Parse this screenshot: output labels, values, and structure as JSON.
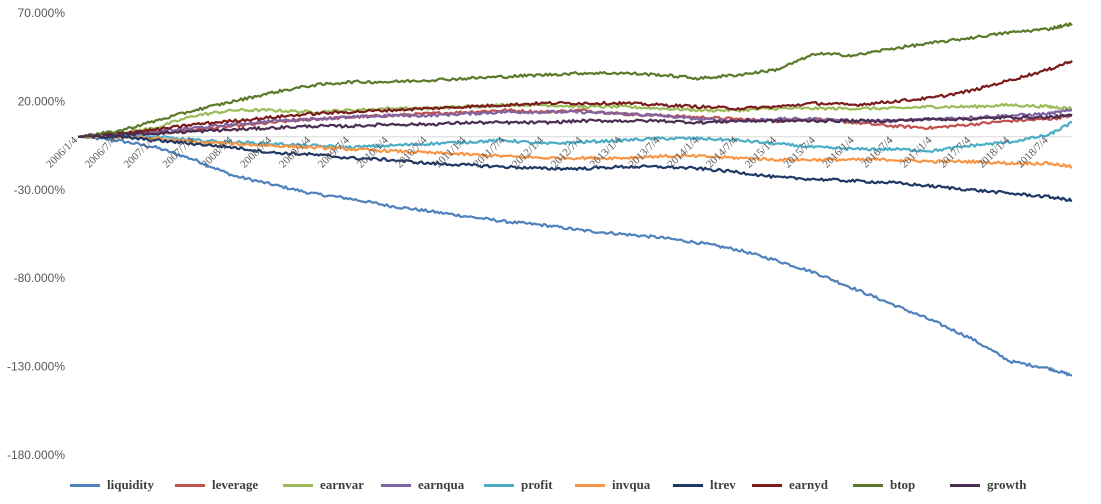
{
  "chart_data": {
    "type": "line",
    "title": "",
    "xlabel": "",
    "ylabel": "",
    "ylim": [
      -180,
      70
    ],
    "y_ticks": [
      "70.000%",
      "20.000%",
      "-30.000%",
      "-80.000%",
      "-130.000%",
      "-180.000%"
    ],
    "y_tick_values": [
      70,
      20,
      -30,
      -80,
      -130,
      -180
    ],
    "x_ticks": [
      "2006/1/4",
      "2006/7/4",
      "2007/1/4",
      "2007/7/4",
      "2008/1/4",
      "2008/7/4",
      "2009/1/4",
      "2009/7/4",
      "2010/1/4",
      "2010/7/4",
      "2011/1/4",
      "2011/7/4",
      "2012/1/4",
      "2012/7/4",
      "2013/1/4",
      "2013/7/4",
      "2014/1/4",
      "2014/7/4",
      "2015/1/4",
      "2015/7/4",
      "2016/1/4",
      "2016/7/4",
      "2017/1/4",
      "2017/7/4",
      "2018/1/4",
      "2018/7/4"
    ],
    "x_range": [
      0,
      12.8
    ],
    "legend_position": "bottom",
    "series": [
      {
        "name": "liquidity",
        "color": "#4f81bd",
        "x": [
          0,
          0.5,
          1,
          1.5,
          2,
          2.5,
          3,
          3.5,
          4,
          4.5,
          5,
          5.5,
          6,
          6.5,
          7,
          7.5,
          8,
          8.5,
          9,
          9.5,
          10,
          10.5,
          11,
          11.5,
          12,
          12.5,
          12.8
        ],
        "values": [
          0,
          -2,
          -6,
          -13,
          -22,
          -27,
          -32,
          -35,
          -39,
          -42,
          -45,
          -48,
          -50,
          -53,
          -55,
          -57,
          -60,
          -64,
          -70,
          -77,
          -86,
          -95,
          -104,
          -114,
          -127,
          -131,
          -135
        ]
      },
      {
        "name": "leverage",
        "color": "#c0504d",
        "x": [
          0,
          0.5,
          1,
          1.5,
          2,
          2.5,
          3,
          3.5,
          4,
          4.5,
          5,
          5.5,
          6,
          6.5,
          7,
          7.5,
          8,
          8.5,
          9,
          9.5,
          10,
          10.5,
          11,
          11.5,
          12,
          12.5,
          12.8
        ],
        "values": [
          0,
          1,
          2,
          4,
          6,
          8,
          10,
          11,
          12,
          13,
          14,
          15,
          14,
          15,
          13,
          12,
          11,
          10,
          9,
          10,
          8,
          6,
          5,
          7,
          9,
          10,
          12
        ]
      },
      {
        "name": "earnvar",
        "color": "#9bbb59",
        "x": [
          0,
          0.5,
          1,
          1.5,
          2,
          2.5,
          3,
          3.5,
          4,
          4.5,
          5,
          5.5,
          6,
          6.5,
          7,
          7.5,
          8,
          8.5,
          9,
          9.5,
          10,
          10.5,
          11,
          11.5,
          12,
          12.5,
          12.8
        ],
        "values": [
          0,
          2,
          5,
          12,
          15,
          15,
          14,
          15,
          16,
          16,
          17,
          18,
          18,
          17,
          17,
          16,
          15,
          15,
          16,
          16,
          16,
          16,
          17,
          17,
          18,
          17,
          16
        ]
      },
      {
        "name": "earnqua",
        "color": "#8064a2",
        "x": [
          0,
          0.5,
          1,
          1.5,
          2,
          2.5,
          3,
          3.5,
          4,
          4.5,
          5,
          5.5,
          6,
          6.5,
          7,
          7.5,
          8,
          8.5,
          9,
          9.5,
          10,
          10.5,
          11,
          11.5,
          12,
          12.5,
          12.8
        ],
        "values": [
          0,
          1,
          3,
          5,
          7,
          9,
          10,
          11,
          12,
          12,
          13,
          14,
          14,
          14,
          13,
          12,
          10,
          9,
          10,
          10,
          9,
          9,
          10,
          11,
          12,
          13,
          15
        ]
      },
      {
        "name": "profit",
        "color": "#4bacc6",
        "x": [
          0,
          0.5,
          1,
          1.5,
          2,
          2.5,
          3,
          3.5,
          4,
          4.5,
          5,
          5.5,
          6,
          6.5,
          7,
          7.5,
          8,
          8.5,
          9,
          9.5,
          10,
          10.5,
          11,
          11.5,
          12,
          12.5,
          12.8
        ],
        "values": [
          0,
          1,
          0,
          -2,
          -3,
          -4,
          -5,
          -6,
          -5,
          -4,
          -3,
          -2,
          -4,
          -3,
          -2,
          -1,
          -1,
          -2,
          -4,
          -6,
          -7,
          -7,
          -8,
          -5,
          -3,
          1,
          8
        ]
      },
      {
        "name": "invqua",
        "color": "#f79646",
        "x": [
          0,
          0.5,
          1,
          1.5,
          2,
          2.5,
          3,
          3.5,
          4,
          4.5,
          5,
          5.5,
          6,
          6.5,
          7,
          7.5,
          8,
          8.5,
          9,
          9.5,
          10,
          10.5,
          11,
          11.5,
          12,
          12.5,
          12.8
        ],
        "values": [
          0,
          0,
          -1,
          -3,
          -4,
          -5,
          -6,
          -7,
          -8,
          -9,
          -10,
          -11,
          -12,
          -12,
          -12,
          -11,
          -11,
          -12,
          -13,
          -13,
          -13,
          -13,
          -14,
          -14,
          -15,
          -15,
          -17
        ]
      },
      {
        "name": "ltrev",
        "color": "#1f3864",
        "x": [
          0,
          0.5,
          1,
          1.5,
          2,
          2.5,
          3,
          3.5,
          4,
          4.5,
          5,
          5.5,
          6,
          6.5,
          7,
          7.5,
          8,
          8.5,
          9,
          9.5,
          10,
          10.5,
          11,
          11.5,
          12,
          12.5,
          12.8
        ],
        "values": [
          0,
          0,
          -2,
          -4,
          -6,
          -9,
          -10,
          -12,
          -13,
          -15,
          -16,
          -17,
          -18,
          -18,
          -17,
          -17,
          -18,
          -20,
          -23,
          -24,
          -25,
          -26,
          -28,
          -30,
          -32,
          -34,
          -36
        ]
      },
      {
        "name": "earnyd",
        "color": "#7b1c1c",
        "x": [
          0,
          0.5,
          1,
          1.5,
          2,
          2.5,
          3,
          3.5,
          4,
          4.5,
          5,
          5.5,
          6,
          6.5,
          7,
          7.5,
          8,
          8.5,
          9,
          9.5,
          10,
          10.5,
          11,
          11.5,
          12,
          12.5,
          12.8
        ],
        "values": [
          0,
          2,
          4,
          7,
          9,
          11,
          13,
          14,
          15,
          16,
          17,
          18,
          19,
          19,
          19,
          18,
          17,
          16,
          17,
          19,
          18,
          20,
          22,
          26,
          32,
          38,
          43
        ]
      },
      {
        "name": "btop",
        "color": "#5a7a2a",
        "x": [
          0,
          0.5,
          1,
          1.5,
          2,
          2.5,
          3,
          3.5,
          4,
          4.5,
          5,
          5.5,
          6,
          6.5,
          7,
          7.5,
          8,
          8.5,
          9,
          9.5,
          10,
          10.5,
          11,
          11.5,
          12,
          12.5,
          12.8
        ],
        "values": [
          0,
          3,
          9,
          15,
          20,
          25,
          29,
          31,
          31,
          32,
          33,
          34,
          35,
          36,
          36,
          35,
          33,
          35,
          38,
          47,
          46,
          50,
          53,
          56,
          59,
          61,
          64
        ]
      },
      {
        "name": "growth",
        "color": "#4b2d52",
        "x": [
          0,
          0.5,
          1,
          1.5,
          2,
          2.5,
          3,
          3.5,
          4,
          4.5,
          5,
          5.5,
          6,
          6.5,
          7,
          7.5,
          8,
          8.5,
          9,
          9.5,
          10,
          10.5,
          11,
          11.5,
          12,
          12.5,
          12.8
        ],
        "values": [
          0,
          1,
          2,
          3,
          4,
          5,
          6,
          6,
          7,
          7,
          8,
          8,
          8,
          9,
          9,
          9,
          8,
          9,
          9,
          9,
          9,
          9,
          10,
          10,
          11,
          11,
          12
        ]
      }
    ]
  }
}
